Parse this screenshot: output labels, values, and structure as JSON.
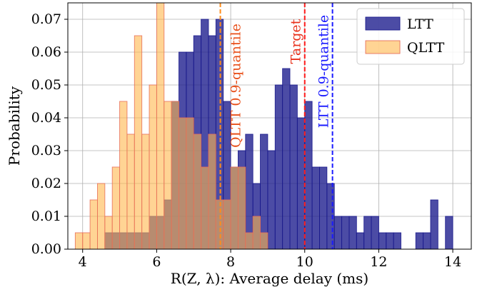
{
  "chart_data": {
    "type": "bar",
    "subtype": "overlaid-histogram",
    "xlabel": "R(Z, λ): Average delay (ms)",
    "ylabel": "Probability",
    "xlim": [
      3.6,
      14.5
    ],
    "ylim": [
      0,
      0.075
    ],
    "xticks": [
      "4",
      "6",
      "8",
      "10",
      "12",
      "14"
    ],
    "yticks": [
      "0.00",
      "0.01",
      "0.02",
      "0.03",
      "0.04",
      "0.05",
      "0.06",
      "0.07"
    ],
    "grid": true,
    "legend_position": "top-right",
    "bin_width": 0.2,
    "series": [
      {
        "name": "LTT",
        "color": "#1a1a8c",
        "edge": "#1a1a8c",
        "opacity": 0.78,
        "bins": [
          [
            4.7,
            0.005
          ],
          [
            4.9,
            0.005
          ],
          [
            5.1,
            0.005
          ],
          [
            5.3,
            0.005
          ],
          [
            5.5,
            0.005
          ],
          [
            5.7,
            0.005
          ],
          [
            5.9,
            0.01
          ],
          [
            6.1,
            0.01
          ],
          [
            6.3,
            0.015
          ],
          [
            6.5,
            0.045
          ],
          [
            6.7,
            0.06
          ],
          [
            6.9,
            0.06
          ],
          [
            7.1,
            0.065
          ],
          [
            7.3,
            0.07
          ],
          [
            7.5,
            0.065
          ],
          [
            7.7,
            0.07
          ],
          [
            7.9,
            0.045
          ],
          [
            8.1,
            0.025
          ],
          [
            8.3,
            0.03
          ],
          [
            8.5,
            0.035
          ],
          [
            8.7,
            0.02
          ],
          [
            8.9,
            0.035
          ],
          [
            9.1,
            0.03
          ],
          [
            9.3,
            0.05
          ],
          [
            9.5,
            0.055
          ],
          [
            9.7,
            0.05
          ],
          [
            9.9,
            0.04
          ],
          [
            10.1,
            0.045
          ],
          [
            10.3,
            0.025
          ],
          [
            10.5,
            0.025
          ],
          [
            10.7,
            0.02
          ],
          [
            10.9,
            0.01
          ],
          [
            11.1,
            0.01
          ],
          [
            11.3,
            0.01
          ],
          [
            11.5,
            0.005
          ],
          [
            11.7,
            0.01
          ],
          [
            11.9,
            0.01
          ],
          [
            12.1,
            0.005
          ],
          [
            12.3,
            0.005
          ],
          [
            12.5,
            0.005
          ],
          [
            13.1,
            0.005
          ],
          [
            13.3,
            0.005
          ],
          [
            13.5,
            0.015
          ],
          [
            13.9,
            0.01
          ]
        ]
      },
      {
        "name": "QLTT",
        "color": "#ffb84d",
        "edge": "#e8705a",
        "opacity": 0.6,
        "bins": [
          [
            3.9,
            0.005
          ],
          [
            4.1,
            0.005
          ],
          [
            4.3,
            0.015
          ],
          [
            4.5,
            0.02
          ],
          [
            4.7,
            0.01
          ],
          [
            4.9,
            0.025
          ],
          [
            5.1,
            0.045
          ],
          [
            5.3,
            0.035
          ],
          [
            5.5,
            0.065
          ],
          [
            5.7,
            0.035
          ],
          [
            5.9,
            0.05
          ],
          [
            6.1,
            0.075
          ],
          [
            6.3,
            0.045
          ],
          [
            6.5,
            0.045
          ],
          [
            6.7,
            0.04
          ],
          [
            6.9,
            0.04
          ],
          [
            7.1,
            0.035
          ],
          [
            7.3,
            0.025
          ],
          [
            7.5,
            0.035
          ],
          [
            7.7,
            0.015
          ],
          [
            7.9,
            0.015
          ],
          [
            8.1,
            0.025
          ],
          [
            8.3,
            0.025
          ],
          [
            8.5,
            0.005
          ],
          [
            8.7,
            0.01
          ],
          [
            8.9,
            0.005
          ]
        ]
      }
    ],
    "vlines": [
      {
        "x": 7.72,
        "label": "QLTT 0.9-quantile",
        "color": "#ff8c1a",
        "text_color": "#e8501a"
      },
      {
        "x": 10.0,
        "label": "Target",
        "color": "#ff1a1a",
        "text_color": "#e8301a"
      },
      {
        "x": 10.75,
        "label": "LTT 0.9-quantile",
        "color": "#1a1aff",
        "text_color": "#1a1aff"
      }
    ]
  }
}
